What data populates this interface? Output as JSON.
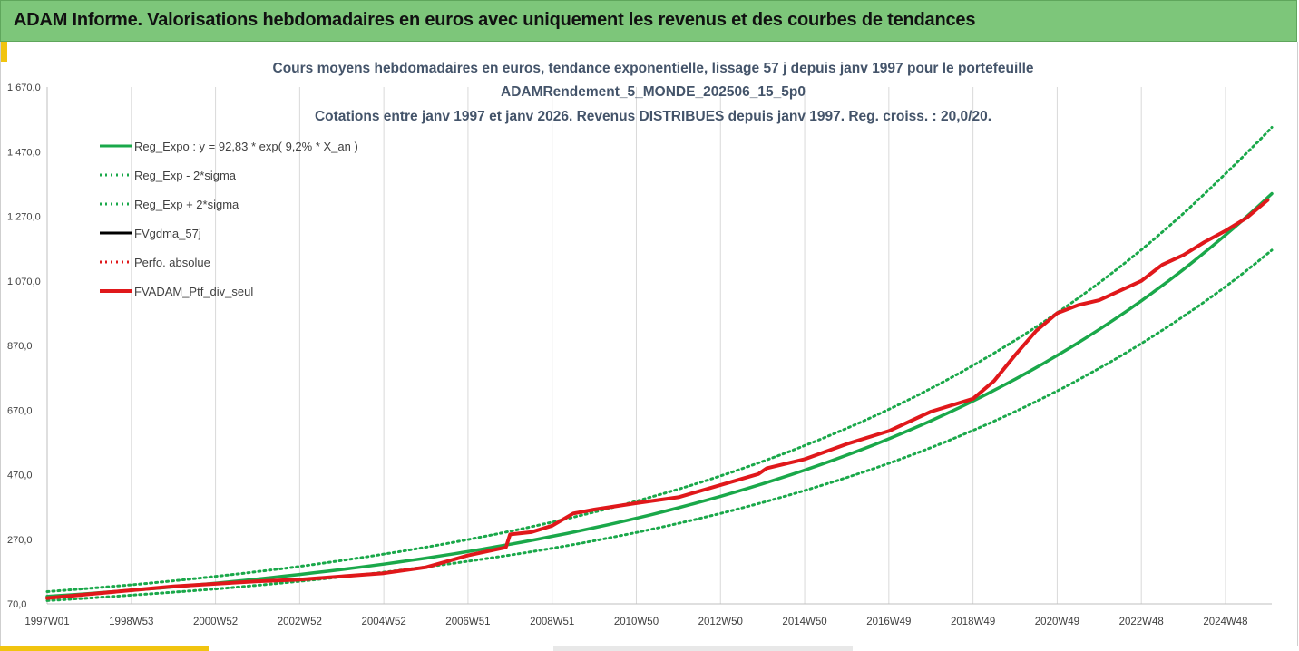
{
  "header": {
    "title": "ADAM Informe. Valorisations hebdomadaires en euros avec uniquement les revenus et des courbes de tendances"
  },
  "colors": {
    "header_bg": "#7dc67a",
    "trend": "#1aa84a",
    "black": "#000000",
    "red": "#e0181b",
    "grid": "#d9d9d9",
    "accent": "#f1c40f"
  },
  "chart_data": {
    "type": "line",
    "title": [
      "Cours moyens hebdomadaires  en euros, tendance exponentielle, lissage 57 j depuis janv 1997 pour le portefeuille",
      "ADAMRendement_5_MONDE_202506_15_5p0",
      "Cotations entre janv 1997 et janv 2026. Revenus DISTRIBUES depuis janv 1997. Reg. croiss. : 20,0/20."
    ],
    "xlabel": "",
    "ylabel": "",
    "ylim": [
      70,
      1670
    ],
    "xlim": [
      1997.0,
      2026.1
    ],
    "yticks": [
      70,
      270,
      470,
      670,
      870,
      1070,
      1270,
      1470,
      1670
    ],
    "ytick_labels": [
      "70,0",
      "270,0",
      "470,0",
      "670,0",
      "870,0",
      "1 070,0",
      "1 270,0",
      "1 470,0",
      "1 670,0"
    ],
    "xticks": [
      1997.0,
      1999.0,
      2001.0,
      2003.0,
      2005.0,
      2007.0,
      2009.0,
      2011.0,
      2013.0,
      2015.0,
      2017.0,
      2019.0,
      2021.0,
      2023.0,
      2025.0
    ],
    "xtick_labels": [
      "1997W01",
      "1998W53",
      "2000W52",
      "2002W52",
      "2004W52",
      "2006W51",
      "2008W51",
      "2010W50",
      "2012W50",
      "2014W50",
      "2016W49",
      "2018W49",
      "2020W49",
      "2022W48",
      "2024W48"
    ],
    "grid": {
      "vertical": true,
      "horizontal": false
    },
    "legend_position": "top-left",
    "series": [
      {
        "name": "Reg_Expo : y = 92,83 * exp( 9,2% *  X_an )",
        "style": "solid",
        "color": "#1aa84a",
        "x": [
          1997,
          1999,
          2001,
          2003,
          2005,
          2007,
          2009,
          2011,
          2013,
          2015,
          2017,
          2019,
          2021,
          2023,
          2025,
          2026.1
        ],
        "values": [
          93,
          112,
          134,
          161,
          193,
          232,
          279,
          335,
          403,
          484,
          581,
          698,
          839,
          1008,
          1212,
          1340
        ]
      },
      {
        "name": "Reg_Exp - 2*sigma",
        "style": "dotted",
        "color": "#1aa84a",
        "x": [
          1997,
          1999,
          2001,
          2003,
          2005,
          2007,
          2009,
          2011,
          2013,
          2015,
          2017,
          2019,
          2021,
          2023,
          2025,
          2026.1
        ],
        "values": [
          80,
          97,
          116,
          140,
          168,
          202,
          242,
          291,
          350,
          421,
          505,
          607,
          729,
          876,
          1052,
          1165
        ]
      },
      {
        "name": "Reg_Exp + 2*sigma",
        "style": "dotted",
        "color": "#1aa84a",
        "x": [
          1997,
          1999,
          2001,
          2003,
          2005,
          2007,
          2009,
          2011,
          2013,
          2015,
          2017,
          2019,
          2021,
          2023,
          2025,
          2026.1
        ],
        "values": [
          108,
          129,
          155,
          186,
          224,
          269,
          323,
          388,
          466,
          560,
          672,
          808,
          971,
          1166,
          1402,
          1545
        ]
      },
      {
        "name": "FVgdma_57j",
        "style": "solid",
        "color": "#000000",
        "x": [
          1997.0,
          1998.0,
          1999.0,
          2000.0,
          2001.0,
          2002.0,
          2003.0,
          2004.0,
          2005.0,
          2006.0,
          2007.0,
          2007.9,
          2008.0,
          2008.5,
          2009.0,
          2009.5,
          2010.0,
          2011.0,
          2012.0,
          2013.0,
          2013.9,
          2014.1,
          2015.0,
          2016.0,
          2017.0,
          2018.0,
          2019.0,
          2019.5,
          2020.0,
          2020.5,
          2021.0,
          2021.5,
          2022.0,
          2022.5,
          2023.0,
          2023.5,
          2024.0,
          2024.5,
          2025.0,
          2025.5,
          2026.0
        ],
        "values": [
          88,
          100,
          112,
          124,
          132,
          140,
          145,
          155,
          165,
          183,
          220,
          245,
          285,
          292,
          312,
          350,
          362,
          382,
          400,
          438,
          472,
          490,
          518,
          565,
          605,
          665,
          705,
          760,
          840,
          915,
          970,
          995,
          1010,
          1040,
          1070,
          1120,
          1150,
          1190,
          1225,
          1265,
          1320
        ]
      },
      {
        "name": "Perfo. absolue",
        "style": "dotted",
        "color": "#e0181b",
        "x": [
          1997.0,
          1998.0,
          1999.0,
          2000.0,
          2001.0,
          2002.0,
          2003.0,
          2004.0,
          2005.0,
          2006.0,
          2007.0,
          2007.9,
          2008.0,
          2008.5,
          2009.0,
          2009.5,
          2010.0,
          2011.0,
          2012.0,
          2013.0,
          2013.9,
          2014.1,
          2015.0,
          2016.0,
          2017.0,
          2018.0,
          2019.0,
          2019.5,
          2020.0,
          2020.5,
          2021.0,
          2021.5,
          2022.0,
          2022.5,
          2023.0,
          2023.5,
          2024.0,
          2024.5,
          2025.0,
          2025.5,
          2026.0
        ],
        "values": [
          88,
          100,
          112,
          124,
          132,
          140,
          145,
          155,
          165,
          183,
          220,
          245,
          285,
          292,
          312,
          350,
          362,
          382,
          400,
          438,
          472,
          490,
          518,
          565,
          605,
          665,
          705,
          760,
          840,
          915,
          970,
          995,
          1010,
          1040,
          1070,
          1120,
          1150,
          1190,
          1225,
          1265,
          1320
        ]
      },
      {
        "name": "FVADAM_Ptf_div_seul",
        "style": "solid",
        "color": "#e0181b",
        "x": [
          1997.0,
          1998.0,
          1999.0,
          2000.0,
          2001.0,
          2002.0,
          2003.0,
          2004.0,
          2005.0,
          2006.0,
          2007.0,
          2007.9,
          2008.0,
          2008.5,
          2009.0,
          2009.5,
          2010.0,
          2011.0,
          2012.0,
          2013.0,
          2013.9,
          2014.1,
          2015.0,
          2016.0,
          2017.0,
          2018.0,
          2019.0,
          2019.5,
          2020.0,
          2020.5,
          2021.0,
          2021.5,
          2022.0,
          2022.5,
          2023.0,
          2023.5,
          2024.0,
          2024.5,
          2025.0,
          2025.5,
          2026.0
        ],
        "values": [
          88,
          100,
          112,
          124,
          132,
          140,
          145,
          155,
          165,
          183,
          220,
          245,
          285,
          292,
          312,
          350,
          362,
          382,
          400,
          438,
          472,
          490,
          518,
          565,
          605,
          665,
          705,
          760,
          840,
          915,
          970,
          995,
          1010,
          1040,
          1070,
          1120,
          1150,
          1190,
          1225,
          1265,
          1320
        ]
      }
    ]
  }
}
